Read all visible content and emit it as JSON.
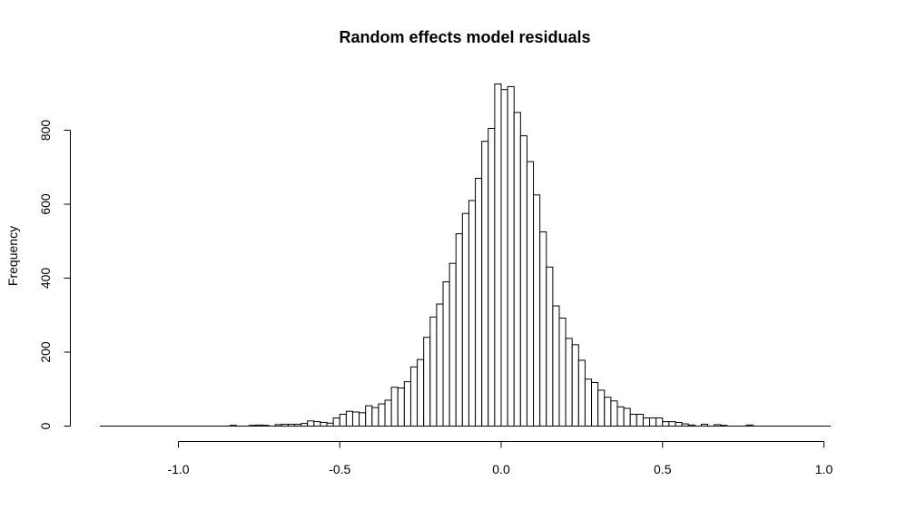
{
  "chart_data": {
    "type": "bar",
    "title": "Random effects model residuals",
    "xlabel": "",
    "ylabel": "Frequency",
    "xlim": [
      -1.25,
      1.02
    ],
    "ylim": [
      0,
      930
    ],
    "bin_width": 0.02,
    "x_ticks": [
      -1.0,
      -0.5,
      0.0,
      0.5,
      1.0
    ],
    "x_tick_labels": [
      "-1.0",
      "-0.5",
      "0.0",
      "0.5",
      "1.0"
    ],
    "y_ticks": [
      0,
      200,
      400,
      600,
      800
    ],
    "y_tick_labels": [
      "0",
      "200",
      "400",
      "600",
      "800"
    ],
    "bins_start": [
      -1.24,
      -1.22,
      -1.2,
      -1.18,
      -1.16,
      -1.14,
      -1.12,
      -1.1,
      -1.08,
      -1.06,
      -1.04,
      -1.02,
      -1.0,
      -0.98,
      -0.96,
      -0.94,
      -0.92,
      -0.9,
      -0.88,
      -0.86,
      -0.84,
      -0.82,
      -0.8,
      -0.78,
      -0.76,
      -0.74,
      -0.72,
      -0.7,
      -0.68,
      -0.66,
      -0.64,
      -0.62,
      -0.6,
      -0.58,
      -0.56,
      -0.54,
      -0.52,
      -0.5,
      -0.48,
      -0.46,
      -0.44,
      -0.42,
      -0.4,
      -0.38,
      -0.36,
      -0.34,
      -0.32,
      -0.3,
      -0.28,
      -0.26,
      -0.24,
      -0.22,
      -0.2,
      -0.18,
      -0.16,
      -0.14,
      -0.12,
      -0.1,
      -0.08,
      -0.06,
      -0.04,
      -0.02,
      0.0,
      0.02,
      0.04,
      0.06,
      0.08,
      0.1,
      0.12,
      0.14,
      0.16,
      0.18,
      0.2,
      0.22,
      0.24,
      0.26,
      0.28,
      0.3,
      0.32,
      0.34,
      0.36,
      0.38,
      0.4,
      0.42,
      0.44,
      0.46,
      0.48,
      0.5,
      0.52,
      0.54,
      0.56,
      0.58,
      0.6,
      0.62,
      0.64,
      0.66,
      0.68,
      0.7,
      0.72,
      0.74,
      0.76,
      0.78,
      0.8,
      0.82,
      0.84,
      0.86,
      0.88,
      0.9,
      0.92,
      0.94,
      0.96,
      0.98,
      1.0
    ],
    "counts": [
      0,
      0,
      0,
      0,
      0,
      0,
      0,
      0,
      0,
      0,
      0,
      0,
      0,
      0,
      0,
      0,
      0,
      0,
      0,
      0,
      2,
      0,
      0,
      2,
      3,
      2,
      0,
      4,
      5,
      5,
      5,
      7,
      14,
      12,
      10,
      8,
      22,
      32,
      40,
      38,
      36,
      55,
      50,
      60,
      70,
      105,
      103,
      120,
      160,
      180,
      240,
      295,
      330,
      390,
      440,
      520,
      575,
      610,
      670,
      770,
      805,
      925,
      910,
      918,
      848,
      785,
      715,
      625,
      525,
      430,
      325,
      292,
      237,
      220,
      178,
      127,
      118,
      97,
      78,
      68,
      52,
      48,
      32,
      32,
      22,
      22,
      22,
      12,
      12,
      10,
      6,
      3,
      0,
      5,
      0,
      4,
      2,
      0,
      0,
      0,
      3,
      0,
      0,
      0,
      0,
      0,
      0,
      0,
      0,
      0,
      0,
      0,
      0
    ]
  }
}
